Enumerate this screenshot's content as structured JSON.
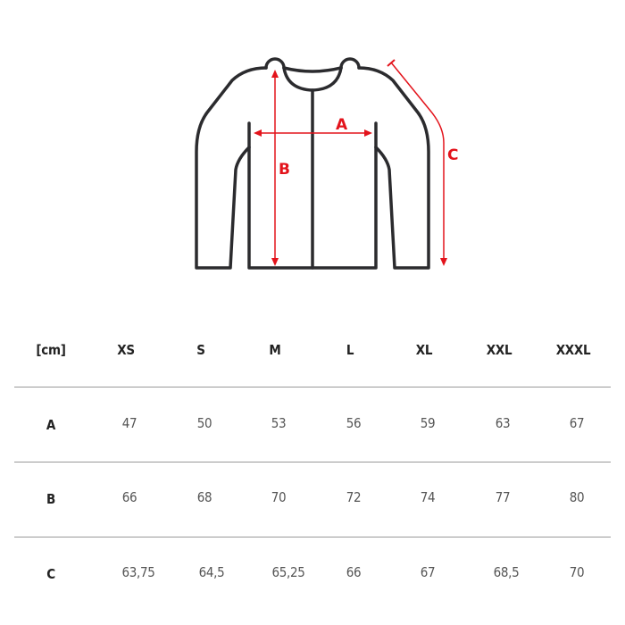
{
  "diagram": {
    "labels": {
      "a": "A",
      "b": "B",
      "c": "C"
    },
    "colors": {
      "outline": "#2b2b2e",
      "measure": "#e3131b"
    }
  },
  "table": {
    "unit_label": "[cm]",
    "sizes": [
      "XS",
      "S",
      "M",
      "L",
      "XL",
      "XXL",
      "XXXL"
    ],
    "rows": [
      {
        "label": "A",
        "values": [
          "47",
          "50",
          "53",
          "56",
          "59",
          "63",
          "67"
        ]
      },
      {
        "label": "B",
        "values": [
          "66",
          "68",
          "70",
          "72",
          "74",
          "77",
          "80"
        ]
      },
      {
        "label": "C",
        "values": [
          "63,75",
          "64,5",
          "65,25",
          "66",
          "67",
          "68,5",
          "70"
        ]
      }
    ]
  }
}
